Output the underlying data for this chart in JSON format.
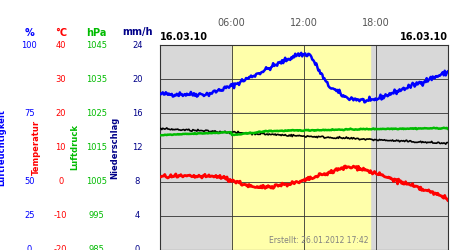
{
  "created_text": "Erstellt: 26.01.2012 17:42",
  "x_start_label": "16.03.10",
  "x_end_label": "16.03.10",
  "plot_bg_color": "#d8d8d8",
  "yellow_color": "#ffffaa",
  "grid_color": "#333333",
  "blue_line_color": "#0000ff",
  "green_line_color": "#00bb00",
  "red_line_color": "#ff0000",
  "black_line_color": "#000000",
  "unit_labels": [
    "%",
    "°C",
    "hPa",
    "mm/h"
  ],
  "unit_colors": [
    "#0000ff",
    "#ff0000",
    "#00bb00",
    "#000088"
  ],
  "pct_vals": [
    100,
    75,
    50,
    25,
    0
  ],
  "temp_vals": [
    40,
    30,
    20,
    10,
    0,
    -10,
    -20
  ],
  "hpa_vals": [
    1045,
    1035,
    1025,
    1015,
    1005,
    995,
    985
  ],
  "mm_vals": [
    24,
    20,
    16,
    12,
    8,
    4,
    0
  ],
  "rot_labels": [
    "Luftfeuchtigkeit",
    "Temperatur",
    "Luftdruck",
    "Niederschlag"
  ],
  "rot_colors": [
    "#0000ff",
    "#ff0000",
    "#00bb00",
    "#000088"
  ]
}
